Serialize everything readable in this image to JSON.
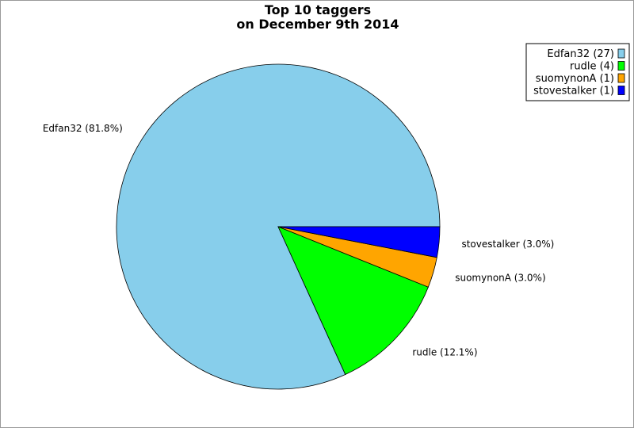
{
  "chart_data": {
    "type": "pie",
    "title": "Top 10 taggers",
    "subtitle": "on December 9th 2014",
    "legend_position": "top-right",
    "slices": [
      {
        "name": "Edfan32",
        "value": 27,
        "percent_label": "Edfan32 (81.8%)",
        "legend_label": "Edfan32 (27)",
        "color": "#87ceeb"
      },
      {
        "name": "rudle",
        "value": 4,
        "percent_label": "rudle (12.1%)",
        "legend_label": "rudle (4)",
        "color": "#00ff00"
      },
      {
        "name": "suomynonA",
        "value": 1,
        "percent_label": "suomynonA (3.0%)",
        "legend_label": "suomynonA (1)",
        "color": "#ffa500"
      },
      {
        "name": "stovestalker",
        "value": 1,
        "percent_label": "stovestalker (3.0%)",
        "legend_label": "stovestalker (1)",
        "color": "#0000ff"
      }
    ]
  }
}
